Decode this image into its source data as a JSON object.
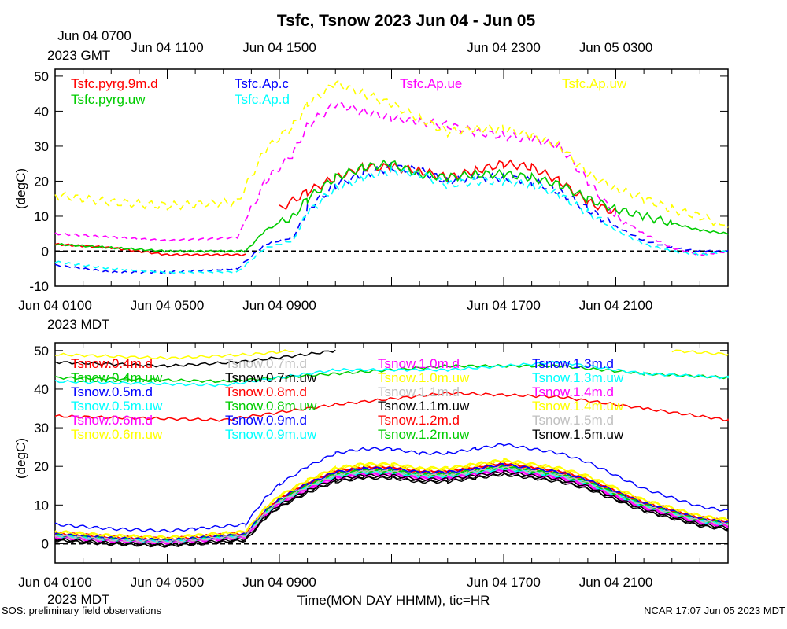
{
  "title": "Tsfc, Tsnow 2023 Jun 04 - Jun 05",
  "footer_left": "SOS: preliminary field observations",
  "footer_right": "NCAR 17:07 Jun 05 2023 MDT",
  "xlabel": "Time(MON DAY HHMM), tic=HR",
  "gmt_tz_label": "2023 GMT",
  "mdt_tz_label": "2023 MDT",
  "gmt_ticks": [
    {
      "t": 0,
      "label": "Jun 04 0700"
    },
    {
      "t": 4,
      "label": "Jun 04 1100"
    },
    {
      "t": 8,
      "label": "Jun 04 1500"
    },
    {
      "t": 16,
      "label": "Jun 04 2300"
    },
    {
      "t": 20,
      "label": "Jun 05 0300"
    }
  ],
  "mdt_ticks": [
    {
      "t": 0,
      "label": "Jun 04 0100"
    },
    {
      "t": 4,
      "label": "Jun 04 0500"
    },
    {
      "t": 8,
      "label": "Jun 04 0900"
    },
    {
      "t": 16,
      "label": "Jun 04 1700"
    },
    {
      "t": 20,
      "label": "Jun 04 2100"
    }
  ],
  "chart_data": [
    {
      "type": "line",
      "ylabel": "(degC)",
      "x_unit": "hours since Jun 04 0100 MDT",
      "xlim": [
        0,
        24
      ],
      "ylim": [
        -10,
        52
      ],
      "yticks": [
        -10,
        0,
        10,
        20,
        30,
        40,
        50
      ],
      "zero_line": true,
      "series": [
        {
          "name": "Tsfc.pyrg.9m.d",
          "color": "#ff0000",
          "dash": false,
          "x": [
            0,
            2,
            4,
            6.8,
            7.3,
            8,
            9,
            10,
            11,
            12,
            13,
            14,
            15,
            16,
            17,
            18,
            19,
            20
          ],
          "y": [
            2,
            1,
            -1,
            -1,
            null,
            12,
            17,
            21,
            24,
            24,
            23,
            21,
            23,
            25,
            24,
            20,
            14,
            11
          ]
        },
        {
          "name": "Tsfc.Ap.c",
          "color": "#0000ff",
          "dash": true,
          "x": [
            0,
            2,
            4,
            6.5,
            7.5,
            8.5,
            9,
            10,
            11,
            12,
            13,
            14,
            15,
            16,
            17,
            18,
            19,
            20,
            21,
            22,
            23,
            24
          ],
          "y": [
            -4,
            -6,
            -6,
            -5,
            2,
            4,
            12,
            19,
            22,
            24,
            23,
            20,
            21,
            21,
            20,
            17,
            12,
            7,
            3,
            1,
            0,
            0
          ]
        },
        {
          "name": "Tsfc.Ap.ue",
          "color": "#ff00ff",
          "dash": true,
          "x": [
            0,
            2,
            4,
            6.5,
            7.5,
            8.5,
            9,
            10,
            11,
            12,
            13,
            14,
            15,
            16,
            17,
            18,
            19,
            20,
            21,
            22,
            23,
            24
          ],
          "y": [
            5,
            4,
            3,
            4,
            20,
            28,
            36,
            42,
            40,
            38,
            37,
            36,
            34,
            33,
            32,
            30,
            20,
            10,
            5,
            1,
            -1,
            0
          ]
        },
        {
          "name": "Tsfc.Ap.uw",
          "color": "#ffff00",
          "dash": true,
          "x": [
            0,
            2,
            4,
            6.5,
            7.5,
            8.5,
            9,
            10,
            11,
            12,
            13,
            14,
            15,
            16,
            17,
            18,
            19,
            20,
            21,
            22,
            23,
            24
          ],
          "y": [
            16,
            14,
            13,
            14,
            29,
            36,
            42,
            48,
            45,
            42,
            38,
            34,
            35,
            35,
            33,
            30,
            22,
            18,
            15,
            12,
            10,
            7
          ]
        },
        {
          "name": "Tsfc.pyrg.uw",
          "color": "#00cc00",
          "dash": false,
          "x": [
            0,
            2,
            4,
            6.8,
            7.5,
            8.5,
            9,
            10,
            11,
            12,
            13,
            14,
            15,
            16,
            17,
            18,
            19,
            20,
            21,
            22,
            23,
            24
          ],
          "y": [
            2,
            1,
            0,
            0,
            6,
            10,
            15,
            21,
            24,
            25,
            22,
            21,
            22,
            22,
            21,
            19,
            15,
            12,
            10,
            8,
            6,
            5
          ]
        },
        {
          "name": "Tsfc.Ap.d",
          "color": "#00ffff",
          "dash": true,
          "x": [
            0,
            2,
            4,
            6.5,
            7.5,
            8.5,
            9,
            10,
            11,
            12,
            13,
            14,
            15,
            16,
            17,
            18,
            19,
            20,
            21,
            22,
            23,
            24
          ],
          "y": [
            -3,
            -5,
            -6,
            -6,
            1,
            3,
            11,
            18,
            21,
            23,
            22,
            19,
            20,
            20,
            19,
            16,
            11,
            6,
            2,
            0,
            -1,
            0
          ]
        }
      ]
    },
    {
      "type": "line",
      "ylabel": "(degC)",
      "x_unit": "hours since Jun 04 0100 MDT",
      "xlim": [
        0,
        24
      ],
      "ylim": [
        -5,
        52
      ],
      "yticks": [
        0,
        10,
        20,
        30,
        40,
        50
      ],
      "zero_line": true,
      "series": [
        {
          "name": "Tsnow.0.4m.d",
          "color": "#ff0000",
          "y0": 2.5,
          "sc": 1.0
        },
        {
          "name": "Tsnow.0.4m.uw",
          "color": "#00cc00",
          "y0": 2.0,
          "sc": 0.98
        },
        {
          "name": "Tsnow.0.5m.d",
          "color": "#0000ff",
          "y0": 5.0,
          "sc": 1.15
        },
        {
          "name": "Tsnow.0.5m.uw",
          "color": "#00ffff",
          "y0": 2.0,
          "sc": 0.97
        },
        {
          "name": "Tsnow.0.6m.d",
          "color": "#ff00ff",
          "y0": 1.5,
          "sc": 0.95
        },
        {
          "name": "Tsnow.0.6m.uw",
          "color": "#ffff00",
          "y0": 3.0,
          "sc": 1.04
        },
        {
          "name": "Tsnow.0.7m.d",
          "color": "#c0c0c0",
          "y0": 2.0,
          "sc": 0.99
        },
        {
          "name": "Tsnow.0.7m.uw",
          "color": "#000000",
          "y0": 1.0,
          "sc": 0.96
        },
        {
          "name": "Tsnow.0.8m.d",
          "color": "#ff0000",
          "y0": 2.8,
          "sc": 1.01
        },
        {
          "name": "Tsnow.0.8m.uw",
          "color": "#00cc00",
          "y0": 2.2,
          "sc": 0.98
        },
        {
          "name": "Tsnow.0.9m.d",
          "color": "#0000ff",
          "y0": 2.4,
          "sc": 1.0
        },
        {
          "name": "Tsnow.0.9m.uw",
          "color": "#00ffff",
          "y0": 1.8,
          "sc": 0.97
        },
        {
          "name": "Tsnow.1.0m.d",
          "color": "#ff00ff",
          "y0": 1.6,
          "sc": 0.96
        },
        {
          "name": "Tsnow.1.0m.uw",
          "color": "#ffff00",
          "y0": 3.2,
          "sc": 1.02
        },
        {
          "name": "Tsnow.1.1m.d",
          "color": "#c0c0c0",
          "y0": 2.1,
          "sc": 0.99
        },
        {
          "name": "Tsnow.1.1m.uw",
          "color": "#000000",
          "y0": 0.8,
          "sc": 0.95
        },
        {
          "name": "Tsnow.1.2m.d",
          "color": "#ff0000",
          "y0": 2.6,
          "sc": 1.0
        },
        {
          "name": "Tsnow.1.2m.uw",
          "color": "#00cc00",
          "y0": 2.3,
          "sc": 0.98
        },
        {
          "name": "Tsnow.1.3m.d",
          "color": "#0000ff",
          "y0": 2.5,
          "sc": 1.0
        },
        {
          "name": "Tsnow.1.3m.uw",
          "color": "#00ffff",
          "y0": 1.9,
          "sc": 0.97
        },
        {
          "name": "Tsnow.1.4m.d",
          "color": "#ff00ff",
          "y0": 1.7,
          "sc": 0.96
        },
        {
          "name": "Tsnow.1.4m.uw",
          "color": "#ffff00",
          "y0": 3.1,
          "sc": 1.01
        },
        {
          "name": "Tsnow.1.5m.d",
          "color": "#c0c0c0",
          "y0": 2.0,
          "sc": 0.98
        },
        {
          "name": "Tsnow.1.5m.uw",
          "color": "#000000",
          "y0": 1.2,
          "sc": 0.97
        }
      ],
      "diurnal_x": [
        0,
        2,
        4,
        5,
        6.8,
        7.5,
        8,
        9,
        10,
        11,
        12,
        13,
        14,
        15,
        16,
        17,
        18,
        19,
        20,
        21,
        22,
        23,
        24
      ],
      "diurnal_y": [
        0,
        -1,
        -1.5,
        -1,
        0,
        6,
        9,
        13,
        16,
        17,
        17,
        16,
        16,
        17,
        18,
        17,
        16,
        14,
        11,
        8,
        6,
        4,
        3
      ],
      "high_band": [
        {
          "name": "Tsnow.0.4m.d",
          "color": "#ff0000",
          "x": [
            0,
            6,
            10,
            14,
            18,
            21,
            24
          ],
          "y": [
            33,
            32,
            36,
            39,
            38,
            35,
            32
          ]
        },
        {
          "name": "Tsnow.0.4m.uw",
          "color": "#00cc00",
          "x": [
            0,
            6,
            10,
            14,
            18,
            21,
            24
          ],
          "y": [
            43,
            42,
            44,
            46,
            46,
            44,
            43
          ]
        },
        {
          "name": "Tsnow.0.5m.uw",
          "color": "#00ffff",
          "x": [
            0,
            6,
            10,
            14,
            18,
            21,
            24
          ],
          "y": [
            42,
            41,
            45,
            45,
            47,
            44,
            43
          ]
        },
        {
          "name": "Tsnow.0.7m.uw",
          "color": "#000000",
          "x": [
            0,
            4,
            6.5,
            9,
            10
          ],
          "y": [
            47,
            46,
            47,
            49,
            50
          ]
        },
        {
          "name": "Tsnow.0.6m.uw",
          "color": "#ffff00",
          "x": [
            0,
            4,
            7,
            8.5
          ],
          "y": [
            49,
            48,
            49,
            50
          ]
        },
        {
          "name": "Tsnow.1.4m.uw",
          "color": "#ffff00",
          "x": [
            22,
            24
          ],
          "y": [
            50,
            49
          ]
        }
      ]
    }
  ]
}
